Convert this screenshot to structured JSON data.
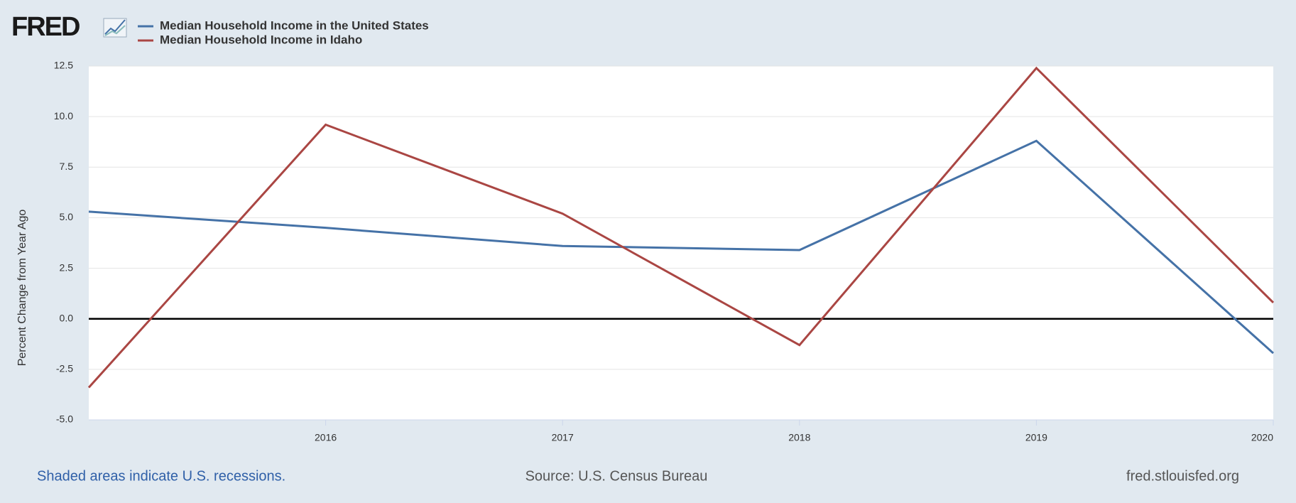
{
  "logo": "FRED",
  "chart_data": {
    "type": "line",
    "y_label": "Percent Change from Year Ago",
    "x": [
      2015,
      2016,
      2017,
      2018,
      2019,
      2020
    ],
    "xlim": [
      2015,
      2020
    ],
    "xticks": [
      2016,
      2017,
      2018,
      2019,
      2020
    ],
    "ylim": [
      -5,
      12.5
    ],
    "yticks": [
      {
        "value": -5,
        "label": "-5.0"
      },
      -2.5,
      {
        "value": 0,
        "label": "0.0"
      },
      2.5,
      {
        "value": 5,
        "label": "5.0"
      },
      7.5,
      {
        "value": 10,
        "label": "10.0"
      },
      12.5
    ],
    "grid": true,
    "series": [
      {
        "name": "Median Household Income in the United States",
        "color": "#4572a7",
        "values": [
          5.3,
          4.5,
          3.6,
          3.4,
          8.8,
          -1.7
        ]
      },
      {
        "name": "Median Household Income in Idaho",
        "color": "#aa4643",
        "values": [
          -3.4,
          9.6,
          5.2,
          -1.3,
          12.4,
          0.8
        ]
      }
    ],
    "notes": [
      "Shaded areas indicate U.S. recessions.",
      "Source: U.S. Census Bureau",
      "fred.stlouisfed.org"
    ]
  }
}
